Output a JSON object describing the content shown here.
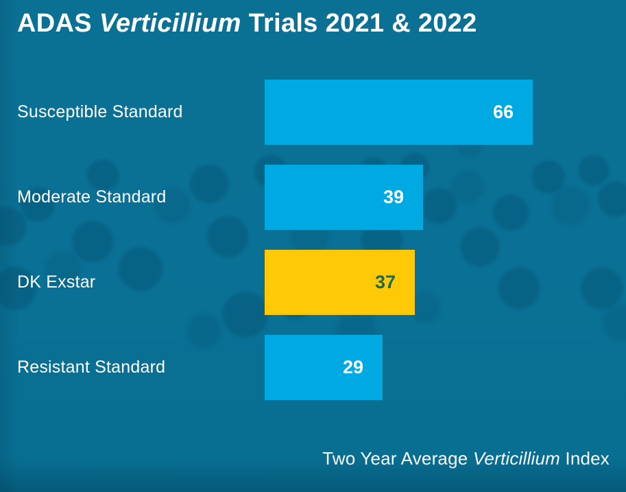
{
  "title": {
    "prefix": "ADAS ",
    "italic": "Verticillium",
    "suffix": " Trials 2021 & 2022"
  },
  "footer": {
    "prefix": "Two Year Average ",
    "italic": "Verticillium",
    "suffix": " Index"
  },
  "colors": {
    "background": "#0A7095",
    "bar_blue": "#00A9E2",
    "bar_yellow": "#FFC907",
    "label_text": "#FFFFFF",
    "value_on_blue": "#FFFFFF",
    "value_on_yellow": "#176A58"
  },
  "chart_data": {
    "type": "bar",
    "orientation": "horizontal",
    "title": "ADAS Verticillium Trials 2021 & 2022",
    "categories": [
      "Susceptible Standard",
      "Moderate Standard",
      "DK Exstar",
      "Resistant Standard"
    ],
    "values": [
      66,
      39,
      37,
      29
    ],
    "bar_colors": [
      "#00A9E2",
      "#00A9E2",
      "#FFC907",
      "#00A9E2"
    ],
    "value_colors": [
      "#FFFFFF",
      "#FFFFFF",
      "#176A58",
      "#FFFFFF"
    ],
    "highlight_category": "DK Exstar",
    "xlabel": "Two Year Average Verticillium Index",
    "xlim": [
      0,
      66
    ],
    "grid": false,
    "legend": false,
    "value_labels": "inside-end"
  }
}
